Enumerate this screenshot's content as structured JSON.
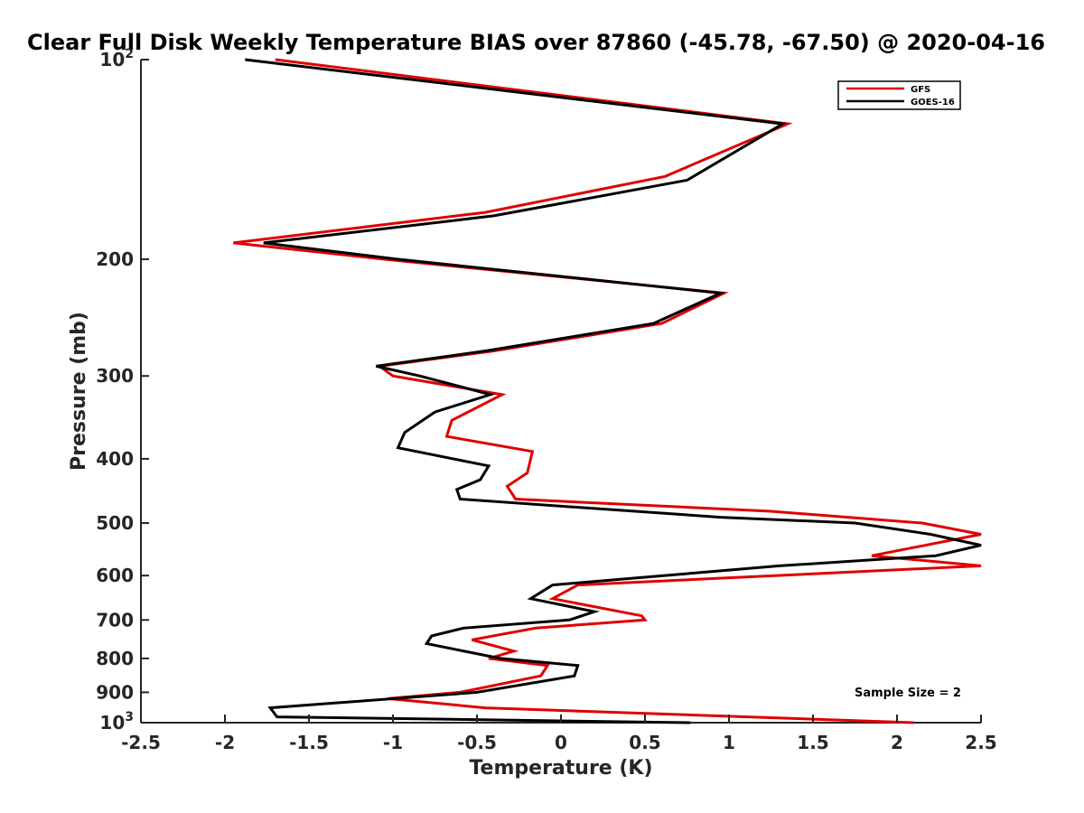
{
  "chart_data": {
    "type": "line",
    "title": "Clear Full Disk Weekly Temperature BIAS over 87860 (-45.78, -67.50) @ 2020-04-16",
    "xlabel": "Temperature (K)",
    "ylabel": "Pressure (mb)",
    "xlim": [
      -2.5,
      2.5
    ],
    "ylim": [
      100,
      1000
    ],
    "y_scale": "log",
    "y_reversed": true,
    "grid": false,
    "legend_position": "top-right",
    "x_ticks": [
      "-2.5",
      "-2",
      "-1.5",
      "-1",
      "-0.5",
      "0",
      "0.5",
      "1",
      "1.5",
      "2",
      "2.5"
    ],
    "y_ticks": [
      {
        "value": 100,
        "base": "10",
        "exp": "2"
      },
      {
        "value": 200,
        "label": "200"
      },
      {
        "value": 300,
        "label": "300"
      },
      {
        "value": 400,
        "label": "400"
      },
      {
        "value": 500,
        "label": "500"
      },
      {
        "value": 600,
        "label": "600"
      },
      {
        "value": 700,
        "label": "700"
      },
      {
        "value": 800,
        "label": "800"
      },
      {
        "value": 900,
        "label": "900"
      },
      {
        "value": 1000,
        "base": "10",
        "exp": "3"
      }
    ],
    "annotation": "Sample Size = 2",
    "series": [
      {
        "name": "GFS",
        "color": "#e00000",
        "points": [
          [
            -1.7,
            100
          ],
          [
            1.35,
            125
          ],
          [
            0.62,
            150
          ],
          [
            -0.45,
            170
          ],
          [
            -1.95,
            189
          ],
          [
            -1.05,
            200
          ],
          [
            0.97,
            225
          ],
          [
            0.6,
            250
          ],
          [
            -0.4,
            275
          ],
          [
            -1.08,
            290
          ],
          [
            -1.0,
            300
          ],
          [
            -0.35,
            320
          ],
          [
            -0.65,
            350
          ],
          [
            -0.68,
            370
          ],
          [
            -0.17,
            390
          ],
          [
            -0.2,
            420
          ],
          [
            -0.32,
            440
          ],
          [
            -0.27,
            460
          ],
          [
            1.25,
            480
          ],
          [
            2.15,
            500
          ],
          [
            2.5,
            520
          ],
          [
            1.85,
            560
          ],
          [
            2.5,
            580
          ],
          [
            0.1,
            620
          ],
          [
            -0.05,
            650
          ],
          [
            0.48,
            690
          ],
          [
            0.5,
            700
          ],
          [
            -0.15,
            720
          ],
          [
            -0.53,
            750
          ],
          [
            -0.28,
            780
          ],
          [
            -0.43,
            800
          ],
          [
            -0.08,
            820
          ],
          [
            -0.12,
            850
          ],
          [
            -0.6,
            900
          ],
          [
            -1.03,
            920
          ],
          [
            -0.45,
            950
          ],
          [
            2.1,
            1000
          ]
        ]
      },
      {
        "name": "GOES-16",
        "color": "#000000",
        "points": [
          [
            -1.88,
            100
          ],
          [
            1.32,
            125
          ],
          [
            0.75,
            152
          ],
          [
            -0.4,
            172
          ],
          [
            -1.77,
            189
          ],
          [
            -0.97,
            200
          ],
          [
            0.95,
            225
          ],
          [
            0.55,
            250
          ],
          [
            -0.45,
            275
          ],
          [
            -1.1,
            290
          ],
          [
            -0.84,
            300
          ],
          [
            -0.42,
            320
          ],
          [
            -0.75,
            340
          ],
          [
            -0.93,
            365
          ],
          [
            -0.97,
            385
          ],
          [
            -0.43,
            410
          ],
          [
            -0.48,
            430
          ],
          [
            -0.62,
            445
          ],
          [
            -0.6,
            460
          ],
          [
            0.95,
            490
          ],
          [
            1.75,
            500
          ],
          [
            2.2,
            520
          ],
          [
            2.5,
            540
          ],
          [
            2.23,
            560
          ],
          [
            1.3,
            580
          ],
          [
            -0.05,
            620
          ],
          [
            -0.18,
            650
          ],
          [
            0.2,
            680
          ],
          [
            0.05,
            700
          ],
          [
            -0.58,
            720
          ],
          [
            -0.77,
            740
          ],
          [
            -0.8,
            760
          ],
          [
            -0.36,
            800
          ],
          [
            0.1,
            820
          ],
          [
            0.08,
            850
          ],
          [
            -0.5,
            900
          ],
          [
            -1.73,
            950
          ],
          [
            -1.69,
            980
          ],
          [
            0.77,
            1000
          ]
        ]
      }
    ]
  }
}
